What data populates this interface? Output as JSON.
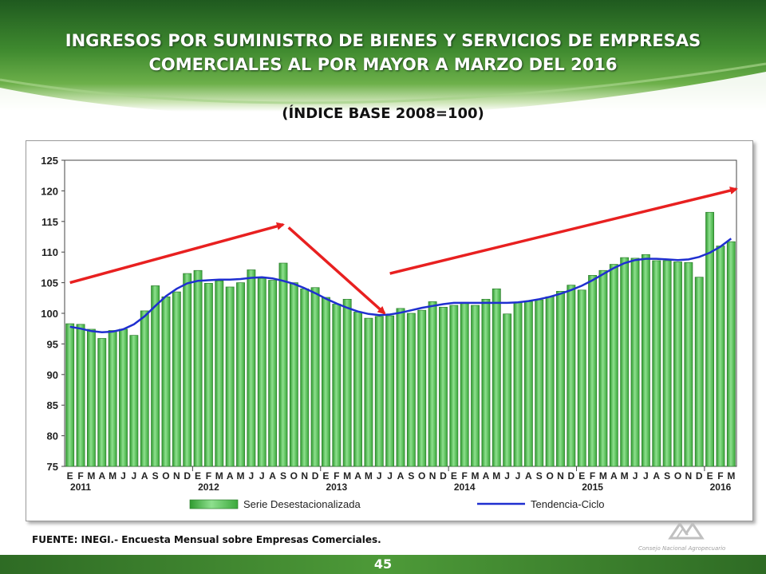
{
  "title": "INGRESOS POR SUMINISTRO DE BIENES Y SERVICIOS DE EMPRESAS COMERCIALES AL POR MAYOR A MARZO DEL 2016",
  "subtitle": "(ÍNDICE BASE 2008=100)",
  "footer_note": "FUENTE: INEGI.- Encuesta Mensual sobre Empresas Comerciales.",
  "page_number": "45",
  "logo_text": "Consejo Nacional Agropecuario",
  "colors": {
    "bar": "#4fbf4f",
    "bar_edge": "#2f7f2f",
    "trend": "#1f2fd0",
    "arrow": "#e82020",
    "banner": "#3f8a2f"
  },
  "chart_data": {
    "type": "bar",
    "ylim": [
      75,
      125
    ],
    "yticks": [
      "75",
      "80",
      "85",
      "90",
      "95",
      "100",
      "105",
      "110",
      "115",
      "120",
      "125"
    ],
    "month_labels": [
      "E",
      "F",
      "M",
      "A",
      "M",
      "J",
      "J",
      "A",
      "S",
      "O",
      "N",
      "D",
      "E",
      "F",
      "M",
      "A",
      "M",
      "J",
      "J",
      "A",
      "S",
      "O",
      "N",
      "D",
      "E",
      "F",
      "M",
      "A",
      "M",
      "J",
      "J",
      "A",
      "S",
      "O",
      "N",
      "D",
      "E",
      "F",
      "M",
      "A",
      "M",
      "J",
      "J",
      "A",
      "S",
      "O",
      "N",
      "D",
      "E",
      "F",
      "M",
      "A",
      "M",
      "J",
      "J",
      "A",
      "S",
      "O",
      "N",
      "D",
      "E",
      "F",
      "M"
    ],
    "years": [
      {
        "label": "2011",
        "start": 0
      },
      {
        "label": "2012",
        "start": 12
      },
      {
        "label": "2013",
        "start": 24
      },
      {
        "label": "2014",
        "start": 36
      },
      {
        "label": "2015",
        "start": 48
      },
      {
        "label": "2016",
        "start": 60
      }
    ],
    "grid": false,
    "legend_position": "bottom",
    "series": [
      {
        "name": "Serie Desestacionalizada",
        "kind": "bar",
        "values": [
          98.3,
          98.2,
          97.4,
          95.9,
          97.2,
          97.4,
          96.4,
          100.4,
          104.5,
          102.7,
          103.5,
          106.5,
          107.0,
          104.9,
          105.3,
          104.3,
          105.0,
          107.1,
          105.7,
          105.4,
          108.2,
          105.0,
          104.0,
          104.2,
          102.6,
          101.5,
          102.3,
          100.2,
          99.2,
          99.5,
          99.6,
          100.8,
          100.0,
          100.5,
          101.9,
          101.0,
          101.3,
          101.8,
          101.3,
          102.3,
          104.0,
          99.9,
          101.8,
          101.9,
          102.2,
          102.7,
          103.6,
          104.6,
          103.8,
          106.2,
          107.0,
          108.0,
          109.1,
          109.0,
          109.6,
          108.6,
          108.6,
          108.4,
          108.3,
          105.9,
          116.5,
          111.0,
          111.7
        ]
      },
      {
        "name": "Tendencia-Ciclo",
        "kind": "line",
        "values": [
          97.8,
          97.5,
          97.1,
          96.9,
          97.0,
          97.4,
          98.2,
          99.5,
          101.2,
          102.8,
          104.0,
          104.9,
          105.3,
          105.4,
          105.5,
          105.5,
          105.6,
          105.8,
          105.9,
          105.7,
          105.3,
          104.8,
          104.1,
          103.3,
          102.4,
          101.6,
          100.9,
          100.3,
          99.9,
          99.7,
          99.8,
          100.1,
          100.5,
          100.9,
          101.2,
          101.5,
          101.7,
          101.7,
          101.7,
          101.7,
          101.7,
          101.7,
          101.8,
          102.0,
          102.3,
          102.7,
          103.2,
          103.8,
          104.5,
          105.4,
          106.4,
          107.4,
          108.2,
          108.7,
          108.9,
          108.9,
          108.8,
          108.7,
          108.8,
          109.2,
          109.9,
          110.9,
          112.2
        ]
      }
    ],
    "annotations": [
      {
        "type": "arrow",
        "from": [
          0,
          105.0
        ],
        "to": [
          20,
          114.5
        ]
      },
      {
        "type": "arrow",
        "from": [
          20.5,
          114.0
        ],
        "to": [
          29.5,
          100.0
        ]
      },
      {
        "type": "arrow",
        "from": [
          30,
          106.5
        ],
        "to": [
          62.5,
          120.3
        ]
      }
    ]
  }
}
